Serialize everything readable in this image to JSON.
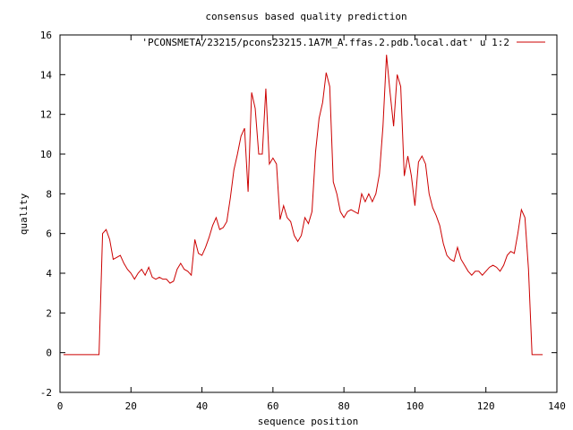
{
  "chart_data": {
    "type": "line",
    "title": "consensus based quality prediction",
    "xlabel": "sequence position",
    "ylabel": "quality",
    "xlim": [
      0,
      140
    ],
    "ylim": [
      -2,
      16
    ],
    "xticks": [
      0,
      20,
      40,
      60,
      80,
      100,
      120,
      140
    ],
    "yticks": [
      -2,
      0,
      2,
      4,
      6,
      8,
      10,
      12,
      14,
      16
    ],
    "legend_position": "top-right",
    "grid": false,
    "series": [
      {
        "name": "'PCONSMETA/23215/pcons23215.1A7M_A.ffas.2.pdb.local.dat' u 1:2",
        "color": "#cc0000",
        "x": [
          1,
          2,
          3,
          4,
          5,
          6,
          7,
          8,
          9,
          10,
          11,
          12,
          13,
          14,
          15,
          16,
          17,
          18,
          19,
          20,
          21,
          22,
          23,
          24,
          25,
          26,
          27,
          28,
          29,
          30,
          31,
          32,
          33,
          34,
          35,
          36,
          37,
          38,
          39,
          40,
          41,
          42,
          43,
          44,
          45,
          46,
          47,
          48,
          49,
          50,
          51,
          52,
          53,
          54,
          55,
          56,
          57,
          58,
          59,
          60,
          61,
          62,
          63,
          64,
          65,
          66,
          67,
          68,
          69,
          70,
          71,
          72,
          73,
          74,
          75,
          76,
          77,
          78,
          79,
          80,
          81,
          82,
          83,
          84,
          85,
          86,
          87,
          88,
          89,
          90,
          91,
          92,
          93,
          94,
          95,
          96,
          97,
          98,
          99,
          100,
          101,
          102,
          103,
          104,
          105,
          106,
          107,
          108,
          109,
          110,
          111,
          112,
          113,
          114,
          115,
          116,
          117,
          118,
          119,
          120,
          121,
          122,
          123,
          124,
          125,
          126,
          127,
          128,
          129,
          130,
          131,
          132,
          133,
          134,
          135,
          136
        ],
        "y": [
          -0.1,
          -0.1,
          -0.1,
          -0.1,
          -0.1,
          -0.1,
          -0.1,
          -0.1,
          -0.1,
          -0.1,
          -0.1,
          6.0,
          6.2,
          5.7,
          4.7,
          4.8,
          4.9,
          4.5,
          4.2,
          4.0,
          3.7,
          4.0,
          4.2,
          3.9,
          4.3,
          3.8,
          3.7,
          3.8,
          3.7,
          3.7,
          3.5,
          3.6,
          4.2,
          4.5,
          4.2,
          4.1,
          3.9,
          5.7,
          5.0,
          4.9,
          5.3,
          5.8,
          6.4,
          6.8,
          6.2,
          6.3,
          6.6,
          7.8,
          9.2,
          10.0,
          10.9,
          11.3,
          8.1,
          13.1,
          12.3,
          10.0,
          10.0,
          13.3,
          9.5,
          9.8,
          9.5,
          6.7,
          7.4,
          6.8,
          6.6,
          5.9,
          5.6,
          5.9,
          6.8,
          6.5,
          7.1,
          10.1,
          11.8,
          12.6,
          14.1,
          13.4,
          8.6,
          8.0,
          7.1,
          6.8,
          7.1,
          7.2,
          7.1,
          7.0,
          8.0,
          7.6,
          8.0,
          7.6,
          8.0,
          9.0,
          11.4,
          15.0,
          13.1,
          11.4,
          14.0,
          13.4,
          8.9,
          9.9,
          8.9,
          7.4,
          9.6,
          9.9,
          9.5,
          8.0,
          7.3,
          6.9,
          6.4,
          5.5,
          4.9,
          4.7,
          4.6,
          5.3,
          4.7,
          4.4,
          4.1,
          3.9,
          4.1,
          4.1,
          3.9,
          4.1,
          4.3,
          4.4,
          4.3,
          4.1,
          4.4,
          4.9,
          5.1,
          5.0,
          6.0,
          7.2,
          6.8,
          4.2,
          -0.1,
          -0.1,
          -0.1,
          -0.1
        ]
      }
    ]
  }
}
